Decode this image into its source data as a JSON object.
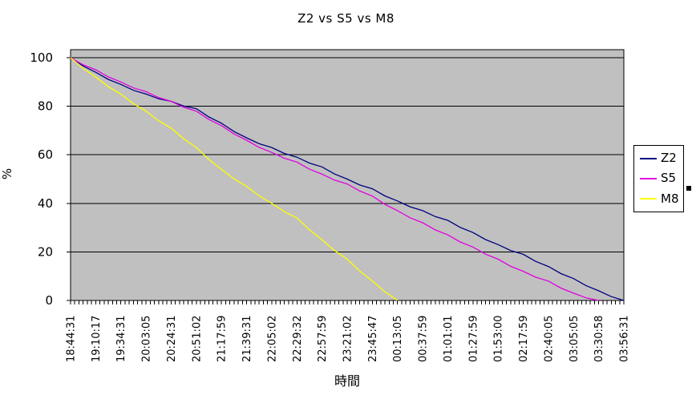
{
  "chart_data": {
    "type": "line",
    "title": "Z2 vs S5 vs M8",
    "xlabel": "時間",
    "ylabel": "%",
    "ylim": [
      0,
      100
    ],
    "yticks": [
      0,
      20,
      40,
      60,
      80,
      100
    ],
    "grid": true,
    "plot_bg": "#c0c0c0",
    "axis_color": "#000000",
    "legend_position": "right",
    "x": [
      "18:44:31",
      "19:10:17",
      "19:34:31",
      "20:03:05",
      "20:24:31",
      "20:51:02",
      "21:17:59",
      "21:39:31",
      "22:05:02",
      "22:29:32",
      "22:57:59",
      "23:21:02",
      "23:45:47",
      "00:13:05",
      "00:37:59",
      "01:01:01",
      "01:27:59",
      "01:53:00",
      "02:17:59",
      "02:40:05",
      "03:05:05",
      "03:30:58",
      "03:56:31"
    ],
    "series": [
      {
        "name": "Z2",
        "color": "#000080",
        "values": [
          100,
          94,
          89,
          85,
          82,
          79,
          73,
          67,
          63,
          59,
          55,
          50,
          46,
          41,
          37,
          33,
          28,
          23,
          19,
          14,
          9,
          4,
          0
        ]
      },
      {
        "name": "S5",
        "color": "#e100e1",
        "values": [
          100,
          95,
          90,
          86,
          82,
          78,
          72,
          66,
          61,
          57,
          52,
          48,
          43,
          37,
          32,
          27,
          22,
          17,
          12,
          8,
          3,
          0,
          null
        ]
      },
      {
        "name": "M8",
        "color": "#ffff00",
        "values": [
          100,
          92,
          85,
          78,
          71,
          63,
          54,
          47,
          40,
          34,
          25,
          17,
          8,
          0,
          null,
          null,
          null,
          null,
          null,
          null,
          null,
          null,
          null
        ]
      }
    ]
  }
}
